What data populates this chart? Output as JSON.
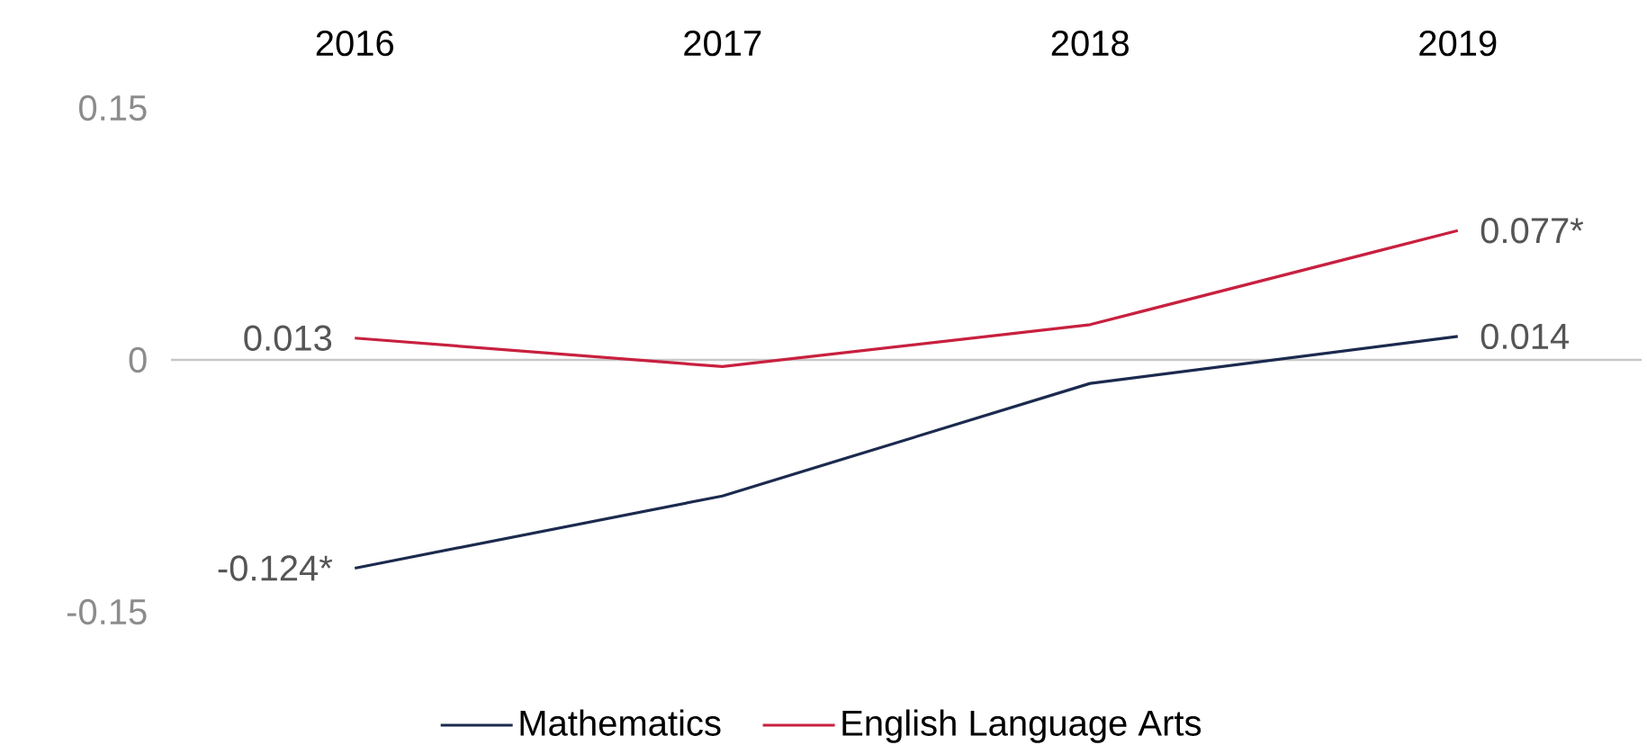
{
  "chart_data": {
    "type": "line",
    "categories": [
      "2016",
      "2017",
      "2018",
      "2019"
    ],
    "series": [
      {
        "name": "Mathematics",
        "color": "#1b2a4e",
        "values": [
          -0.124,
          -0.081,
          -0.014,
          0.014
        ],
        "value_labels": [
          "-0.124*",
          null,
          null,
          "0.014"
        ]
      },
      {
        "name": "English Language Arts",
        "color": "#c8203f",
        "values": [
          0.013,
          -0.004,
          0.021,
          0.077
        ],
        "value_labels": [
          "0.013",
          null,
          null,
          "0.077*"
        ]
      }
    ],
    "ylim": [
      -0.15,
      0.15
    ],
    "yticks": [
      -0.15,
      0,
      0.15
    ],
    "ref_lines": [
      {
        "axis": "y",
        "value": 0,
        "color": "#c8c8c8"
      }
    ],
    "legend": "bottom",
    "marker": "none",
    "line_style": "solid"
  }
}
